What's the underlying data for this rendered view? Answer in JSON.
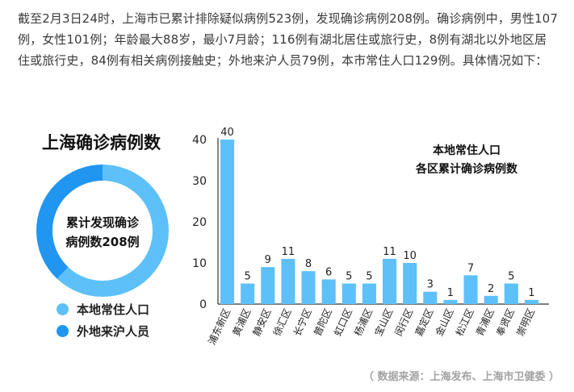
{
  "intro_text": "截至2月3日24时，上海市已累计排除疑似病例523例，发现确诊病例208例。确诊病例中，男性107例，女性101例；年龄最大88岁，最小7月龄；116例有湖北居住或旅行史，8例有湖北以外地区居住或旅行史，84例有相关病例接触史；外地来沪人员79例，本市常住人口129例。具体情况如下：",
  "left_panel": {
    "title": "上海确诊病例数",
    "donut_center_line1": "累计发现确诊",
    "donut_center_line2": "病例数208例",
    "legend": [
      {
        "label": "本地常住人口",
        "color": "#5ec0f9"
      },
      {
        "label": "外地来沪人员",
        "color": "#2196f0"
      }
    ]
  },
  "donut_data": {
    "type": "pie",
    "total": 208,
    "slices": [
      {
        "label": "本地常住人口",
        "value": 129,
        "color": "#5ec0f9"
      },
      {
        "label": "外地来沪人员",
        "value": 79,
        "color": "#2196f0"
      }
    ]
  },
  "chart_data": {
    "type": "bar",
    "title": "本地常住人口",
    "subtitle": "各区累计确诊病例数",
    "categories": [
      "浦东新区",
      "黄浦区",
      "静安区",
      "徐汇区",
      "长宁区",
      "普陀区",
      "虹口区",
      "杨浦区",
      "宝山区",
      "闵行区",
      "嘉定区",
      "金山区",
      "松江区",
      "青浦区",
      "奉贤区",
      "崇明区"
    ],
    "values": [
      40,
      5,
      9,
      11,
      8,
      6,
      5,
      5,
      11,
      10,
      3,
      1,
      7,
      2,
      5,
      1
    ],
    "ylim": [
      0,
      40
    ],
    "yticks": [
      0,
      10,
      20,
      30,
      40
    ],
    "grid": false,
    "bar_color": "#5ec0f9"
  },
  "source": "（ 数据来源：上海发布、上海市卫健委 ）"
}
